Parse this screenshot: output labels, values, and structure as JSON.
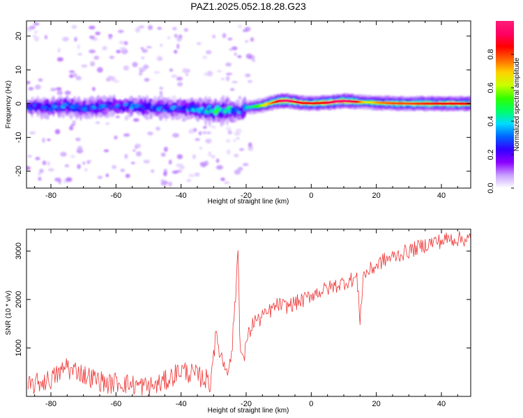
{
  "title": "PAZ1.2025.052.18.28.G23",
  "chart_data": [
    {
      "type": "heatmap",
      "xlabel": "Height of straight line (km)",
      "ylabel": "Frequency (Hz)",
      "xlim": [
        -87.5,
        49
      ],
      "ylim": [
        -25,
        24.5
      ],
      "x_ticks": [
        -80,
        -60,
        -40,
        -20,
        0,
        20,
        40
      ],
      "y_ticks": [
        -20,
        -10,
        0,
        10,
        20
      ],
      "colorbar": {
        "label": "Normalized spectral amplitude",
        "range": [
          0,
          1
        ],
        "ticks": [
          0.0,
          0.2,
          0.4,
          0.6,
          0.8
        ],
        "colormap": [
          "#ffffff",
          "#c8a0ff",
          "#8c00ff",
          "#3200ff",
          "#0064ff",
          "#00dcff",
          "#00ff64",
          "#32ff00",
          "#c8ff00",
          "#ffd200",
          "#ff6400",
          "#ff0000",
          "#ff0064",
          "#ff1e78"
        ]
      },
      "ridge": {
        "height_km": [
          -87,
          -80,
          -75,
          -70,
          -65,
          -60,
          -55,
          -50,
          -45,
          -40,
          -35,
          -30,
          -27,
          -25,
          -22,
          -20,
          -17,
          -15,
          -12,
          -10,
          -8,
          -5,
          -3,
          0,
          3,
          5,
          8,
          10,
          13,
          15,
          17,
          20,
          25,
          30,
          35,
          40,
          45,
          49
        ],
        "frequency_hz": [
          -1.0,
          -1.2,
          -0.8,
          -1.5,
          -1.0,
          -0.5,
          -0.8,
          -1.0,
          -1.5,
          -1.2,
          -1.8,
          -2.2,
          -2.0,
          -1.8,
          -2.5,
          -1.2,
          -0.8,
          -0.5,
          0.3,
          0.8,
          0.9,
          0.5,
          0.2,
          0.1,
          0.2,
          0.3,
          0.7,
          0.8,
          0.6,
          0.5,
          0.4,
          0.3,
          0.1,
          0.0,
          0.0,
          0.0,
          0.0,
          0.0
        ],
        "amplitude": [
          0.25,
          0.3,
          0.3,
          0.3,
          0.3,
          0.28,
          0.3,
          0.3,
          0.3,
          0.3,
          0.35,
          0.45,
          0.45,
          0.45,
          0.3,
          0.4,
          0.5,
          0.6,
          0.75,
          0.85,
          0.9,
          0.85,
          0.8,
          0.8,
          0.8,
          0.85,
          0.9,
          0.9,
          0.85,
          0.7,
          0.6,
          0.7,
          0.75,
          0.75,
          0.78,
          0.8,
          0.8,
          0.8
        ]
      }
    },
    {
      "type": "line",
      "xlabel": "Height of straight line (km)",
      "ylabel": "SNR (10 * v/v)",
      "xlim": [
        -87.5,
        49
      ],
      "ylim": [
        0,
        3450
      ],
      "x_ticks": [
        -80,
        -60,
        -40,
        -20,
        0,
        20,
        40
      ],
      "y_ticks": [
        1000,
        2000,
        3000
      ],
      "line_color": "#ee3333",
      "series": [
        {
          "x": [
            -87,
            -85,
            -83,
            -80,
            -78,
            -76,
            -75,
            -74,
            -72,
            -70,
            -68,
            -66,
            -64,
            -62,
            -60,
            -58,
            -56,
            -54,
            -52,
            -50,
            -48,
            -46,
            -44,
            -42,
            -40,
            -38,
            -36,
            -34,
            -32,
            -31,
            -30,
            -29,
            -28,
            -27,
            -26,
            -25,
            -24,
            -23,
            -22.5,
            -22,
            -21.5,
            -21,
            -20.5,
            -20,
            -19,
            -18,
            -17,
            -16,
            -15,
            -14,
            -13,
            -12,
            -10,
            -8,
            -6,
            -4,
            -2,
            0,
            2,
            4,
            6,
            8,
            10,
            12,
            14,
            15,
            16,
            18,
            20,
            22,
            24,
            26,
            28,
            30,
            32,
            34,
            36,
            38,
            40,
            42,
            44,
            46,
            49
          ],
          "y": [
            200,
            250,
            300,
            350,
            450,
            550,
            700,
            500,
            550,
            450,
            400,
            350,
            300,
            250,
            300,
            280,
            250,
            230,
            220,
            200,
            220,
            280,
            350,
            450,
            550,
            500,
            450,
            400,
            350,
            250,
            1000,
            1200,
            900,
            700,
            650,
            600,
            1300,
            2400,
            3100,
            1500,
            800,
            900,
            600,
            1200,
            1300,
            1500,
            1600,
            1550,
            1700,
            1650,
            1750,
            1800,
            1900,
            1850,
            1900,
            1950,
            2000,
            2100,
            2150,
            2200,
            2250,
            2300,
            2350,
            2400,
            2450,
            1600,
            2500,
            2600,
            2700,
            2800,
            2850,
            2900,
            2950,
            3000,
            3050,
            3100,
            3150,
            3200,
            3200,
            3250,
            3250,
            3250,
            3250
          ]
        }
      ]
    }
  ]
}
